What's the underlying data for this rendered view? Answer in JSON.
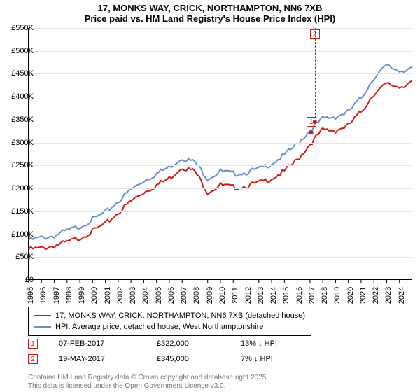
{
  "title_line1": "17, MONKS WAY, CRICK, NORTHAMPTON, NN6 7XB",
  "title_line2": "Price paid vs. HM Land Registry's House Price Index (HPI)",
  "chart": {
    "type": "line",
    "background_color": "#ffffff",
    "grid_color": "#e5e5e5",
    "axis_color": "#000000",
    "ylim": [
      0,
      550
    ],
    "ytick_step": 50,
    "ytick_labels": [
      "£0",
      "£50K",
      "£100K",
      "£150K",
      "£200K",
      "£250K",
      "£300K",
      "£350K",
      "£400K",
      "£450K",
      "£500K",
      "£550K"
    ],
    "xlim": [
      1995,
      2025
    ],
    "xtick_labels": [
      "1995",
      "1996",
      "1997",
      "1998",
      "1999",
      "2000",
      "2001",
      "2002",
      "2003",
      "2004",
      "2005",
      "2006",
      "2007",
      "2008",
      "2009",
      "2010",
      "2011",
      "2012",
      "2013",
      "2014",
      "2015",
      "2016",
      "2017",
      "2018",
      "2019",
      "2020",
      "2021",
      "2022",
      "2023",
      "2024"
    ],
    "series": [
      {
        "name": "price_paid",
        "label": "17, MONKS WAY, CRICK, NORTHAMPTON, NN6 7XB (detached house)",
        "color": "#d01818",
        "width": 2,
        "x": [
          1995,
          1996,
          1997,
          1998,
          1999,
          2000,
          2001,
          2002,
          2003,
          2004,
          2005,
          2006,
          2007,
          2008,
          2009,
          2010,
          2011,
          2012,
          2013,
          2014,
          2015,
          2016,
          2017,
          2018,
          2019,
          2020,
          2021,
          2022,
          2023,
          2024,
          2025
        ],
        "y": [
          70,
          72,
          78,
          85,
          95,
          110,
          125,
          150,
          175,
          195,
          210,
          225,
          250,
          240,
          195,
          210,
          205,
          208,
          215,
          225,
          240,
          265,
          300,
          330,
          330,
          340,
          370,
          410,
          430,
          425,
          435
        ]
      },
      {
        "name": "hpi",
        "label": "HPI: Average price, detached house, West Northamptonshire",
        "color": "#6a8fc3",
        "width": 2,
        "x": [
          1995,
          1996,
          1997,
          1998,
          1999,
          2000,
          2001,
          2002,
          2003,
          2004,
          2005,
          2006,
          2007,
          2008,
          2009,
          2010,
          2011,
          2012,
          2013,
          2014,
          2015,
          2016,
          2017,
          2018,
          2019,
          2020,
          2021,
          2022,
          2023,
          2024,
          2025
        ],
        "y": [
          90,
          95,
          100,
          110,
          120,
          135,
          150,
          175,
          200,
          220,
          235,
          250,
          270,
          260,
          225,
          240,
          235,
          238,
          245,
          258,
          275,
          300,
          330,
          355,
          360,
          370,
          400,
          445,
          470,
          460,
          465
        ]
      }
    ],
    "markers": [
      {
        "n": "1",
        "x": 2017.1,
        "y": 322,
        "color": "#d01818",
        "show_vline": false
      },
      {
        "n": "2",
        "x": 2017.38,
        "y": 345,
        "color": "#d01818",
        "show_vline": true
      }
    ],
    "marker_box_offset": {
      "dx": 0,
      "dy": -70
    }
  },
  "legend": {
    "items": [
      {
        "color": "#d01818",
        "text": "17, MONKS WAY, CRICK, NORTHAMPTON, NN6 7XB (detached house)"
      },
      {
        "color": "#6a8fc3",
        "text": "HPI: Average price, detached house, West Northamptonshire"
      }
    ]
  },
  "datarows": [
    {
      "n": "1",
      "color": "#d01818",
      "date": "07-FEB-2017",
      "price": "£322,000",
      "delta": "13% ↓ HPI"
    },
    {
      "n": "2",
      "color": "#d01818",
      "date": "19-MAY-2017",
      "price": "£345,000",
      "delta": "7% ↓ HPI"
    }
  ],
  "footer": {
    "line1": "Contains HM Land Registry data © Crown copyright and database right 2025.",
    "line2": "This data is licensed under the Open Government Licence v3.0."
  },
  "label_fontsize": 11
}
